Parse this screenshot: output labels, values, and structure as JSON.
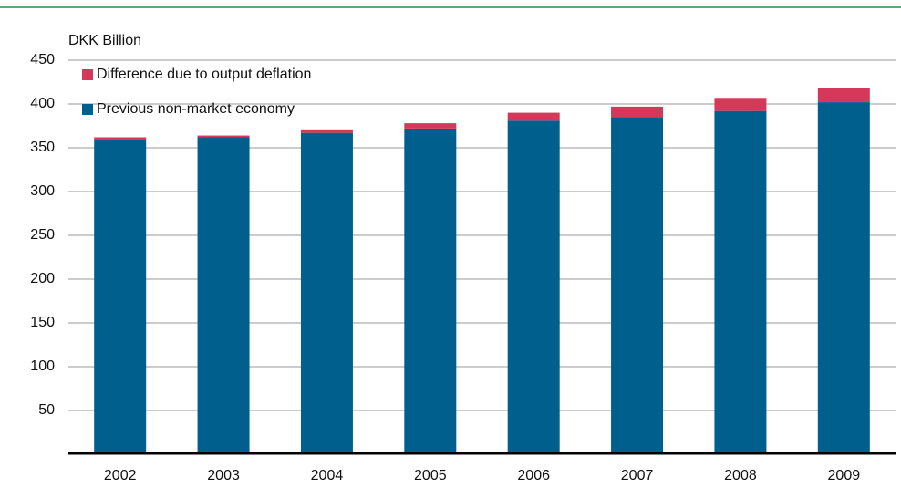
{
  "chart_data": {
    "type": "stacked-bar",
    "y_label": "DKK Billion",
    "categories": [
      "2002",
      "2003",
      "2004",
      "2005",
      "2006",
      "2007",
      "2008",
      "2009"
    ],
    "series": [
      {
        "name": "Previous non-market economy",
        "color": "#005f8c",
        "values": [
          359,
          362,
          367,
          372,
          381,
          385,
          392,
          402
        ]
      },
      {
        "name": "Difference due to output deflation",
        "color": "#d6385a",
        "values": [
          3,
          2,
          4,
          6,
          9,
          12,
          15,
          16
        ]
      }
    ],
    "ylim": [
      0,
      450
    ],
    "yticks": [
      50,
      100,
      150,
      200,
      250,
      300,
      350,
      400,
      450
    ],
    "grid": true
  }
}
